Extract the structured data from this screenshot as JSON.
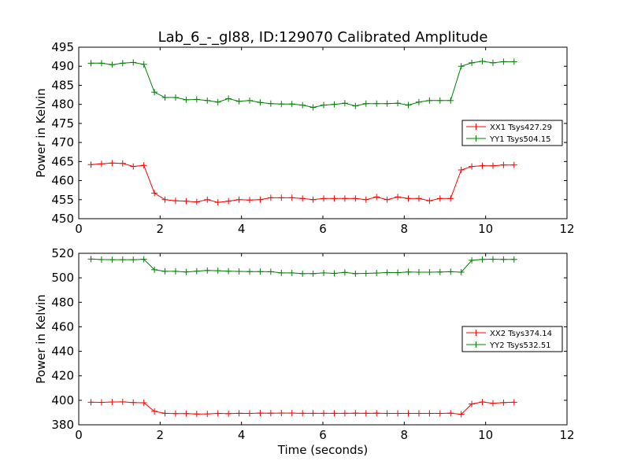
{
  "chart_data": [
    {
      "type": "line",
      "title": "Lab_6_-_gl88, ID:129070 Calibrated Amplitude",
      "xlabel": "",
      "ylabel": "Power in Kelvin",
      "xlim": [
        0,
        12
      ],
      "ylim": [
        450,
        495
      ],
      "xticks": [
        0,
        2,
        4,
        6,
        8,
        10,
        12
      ],
      "yticks": [
        450,
        455,
        460,
        465,
        470,
        475,
        480,
        485,
        490,
        495
      ],
      "legend_position": "center-right",
      "x": [
        0.3,
        0.56,
        0.82,
        1.08,
        1.34,
        1.6,
        1.86,
        2.12,
        2.38,
        2.64,
        2.9,
        3.16,
        3.42,
        3.68,
        3.94,
        4.2,
        4.46,
        4.72,
        4.98,
        5.24,
        5.5,
        5.76,
        6.02,
        6.28,
        6.54,
        6.8,
        7.06,
        7.32,
        7.58,
        7.84,
        8.1,
        8.36,
        8.62,
        8.88,
        9.14,
        9.4,
        9.66,
        9.92,
        10.18,
        10.44,
        10.7
      ],
      "series": [
        {
          "name": "XX1 Tsys427.29",
          "color": "#ff0000",
          "values": [
            464.2,
            464.4,
            464.6,
            464.5,
            463.7,
            464.0,
            456.7,
            455.0,
            454.7,
            454.6,
            454.4,
            455.0,
            454.3,
            454.6,
            455.0,
            454.9,
            455.0,
            455.5,
            455.5,
            455.5,
            455.3,
            455.0,
            455.3,
            455.3,
            455.3,
            455.3,
            455.0,
            455.7,
            455.0,
            455.7,
            455.3,
            455.3,
            454.7,
            455.3,
            455.3,
            462.8,
            463.7,
            463.9,
            463.9,
            464.1,
            464.1
          ]
        },
        {
          "name": "YY1 Tsys504.15",
          "color": "#008000",
          "values": [
            490.8,
            490.8,
            490.4,
            490.8,
            491.0,
            490.5,
            483.2,
            481.8,
            481.8,
            481.2,
            481.3,
            481.0,
            480.6,
            481.5,
            480.8,
            481.0,
            480.5,
            480.2,
            480.1,
            480.1,
            479.8,
            479.2,
            479.8,
            480.0,
            480.3,
            479.6,
            480.2,
            480.2,
            480.2,
            480.3,
            479.8,
            480.6,
            481.0,
            481.0,
            481.0,
            490.0,
            490.9,
            491.3,
            490.9,
            491.2,
            491.2
          ]
        }
      ]
    },
    {
      "type": "line",
      "title": "",
      "xlabel": "Time (seconds)",
      "ylabel": "Power in Kelvin",
      "xlim": [
        0,
        12
      ],
      "ylim": [
        380,
        520
      ],
      "xticks": [
        0,
        2,
        4,
        6,
        8,
        10,
        12
      ],
      "yticks": [
        380,
        400,
        420,
        440,
        460,
        480,
        500,
        520
      ],
      "legend_position": "center-right",
      "x": [
        0.3,
        0.56,
        0.82,
        1.08,
        1.34,
        1.6,
        1.86,
        2.12,
        2.38,
        2.64,
        2.9,
        3.16,
        3.42,
        3.68,
        3.94,
        4.2,
        4.46,
        4.72,
        4.98,
        5.24,
        5.5,
        5.76,
        6.02,
        6.28,
        6.54,
        6.8,
        7.06,
        7.32,
        7.58,
        7.84,
        8.1,
        8.36,
        8.62,
        8.88,
        9.14,
        9.4,
        9.66,
        9.92,
        10.18,
        10.44,
        10.7
      ],
      "series": [
        {
          "name": "XX2 Tsys374.14",
          "color": "#ff0000",
          "values": [
            398.4,
            398.3,
            398.6,
            398.7,
            398.2,
            398.0,
            391.0,
            389.4,
            389.2,
            389.2,
            388.8,
            388.9,
            389.3,
            389.1,
            389.4,
            389.3,
            389.6,
            389.5,
            389.6,
            389.6,
            389.4,
            389.4,
            389.4,
            389.4,
            389.4,
            389.5,
            389.4,
            389.5,
            389.3,
            389.3,
            389.3,
            389.3,
            389.3,
            389.3,
            389.5,
            388.6,
            397.0,
            398.6,
            397.6,
            398.1,
            398.4
          ]
        },
        {
          "name": "YY2 Tsys532.51",
          "color": "#008000",
          "values": [
            515.3,
            514.9,
            514.8,
            514.8,
            514.8,
            515.1,
            506.6,
            505.3,
            505.3,
            504.8,
            505.4,
            506.0,
            505.8,
            505.4,
            505.2,
            505.1,
            505.1,
            505.0,
            504.0,
            504.0,
            503.4,
            503.4,
            504.0,
            503.6,
            504.4,
            503.4,
            503.6,
            503.9,
            504.3,
            504.2,
            504.8,
            504.6,
            504.6,
            504.7,
            505.0,
            504.6,
            514.3,
            515.0,
            515.2,
            515.0,
            515.0
          ]
        }
      ]
    }
  ]
}
